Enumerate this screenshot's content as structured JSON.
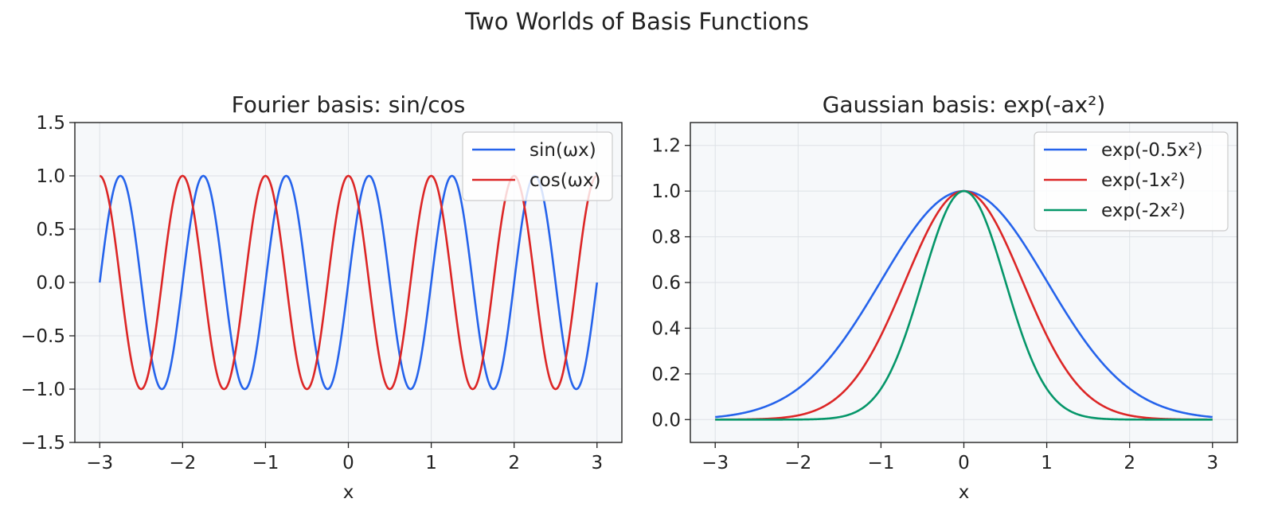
{
  "figure": {
    "title": "Two Worlds of Basis Functions"
  },
  "colors": {
    "blue": "#2563eb",
    "red": "#dc2626",
    "green": "#059669",
    "plot_bg": "#f6f8fa",
    "grid": "#dde1e6"
  },
  "chart_data": [
    {
      "type": "line",
      "title": "Fourier basis: sin/cos",
      "xlabel": "x",
      "ylabel": "",
      "xlim": [
        -3.3,
        3.3
      ],
      "ylim": [
        -1.5,
        1.5
      ],
      "xticks": [
        -3,
        -2,
        -1,
        0,
        1,
        2,
        3
      ],
      "xtick_labels": [
        "−3",
        "−2",
        "−1",
        "0",
        "1",
        "2",
        "3"
      ],
      "yticks": [
        -1.5,
        -1.0,
        -0.5,
        0.0,
        0.5,
        1.0,
        1.5
      ],
      "ytick_labels": [
        "−1.5",
        "−1.0",
        "−0.5",
        "0.0",
        "0.5",
        "1.0",
        "1.5"
      ],
      "grid": true,
      "legend_position": "upper-right",
      "x_range": [
        -3,
        3
      ],
      "series": [
        {
          "name": "sin(ωx)",
          "function": "sin",
          "omega": 6.2832,
          "color": "#2563eb"
        },
        {
          "name": "cos(ωx)",
          "function": "cos",
          "omega": 6.2832,
          "color": "#dc2626"
        }
      ]
    },
    {
      "type": "line",
      "title": "Gaussian basis: exp(-ax²)",
      "xlabel": "x",
      "ylabel": "",
      "xlim": [
        -3.3,
        3.3
      ],
      "ylim": [
        -0.1,
        1.3
      ],
      "xticks": [
        -3,
        -2,
        -1,
        0,
        1,
        2,
        3
      ],
      "xtick_labels": [
        "−3",
        "−2",
        "−1",
        "0",
        "1",
        "2",
        "3"
      ],
      "yticks": [
        0.0,
        0.2,
        0.4,
        0.6,
        0.8,
        1.0,
        1.2
      ],
      "ytick_labels": [
        "0.0",
        "0.2",
        "0.4",
        "0.6",
        "0.8",
        "1.0",
        "1.2"
      ],
      "grid": true,
      "legend_position": "upper-right",
      "x_range": [
        -3,
        3
      ],
      "series": [
        {
          "name": "exp(-0.5x²)",
          "function": "gaussian",
          "a": 0.5,
          "color": "#2563eb"
        },
        {
          "name": "exp(-1x²)",
          "function": "gaussian",
          "a": 1,
          "color": "#dc2626"
        },
        {
          "name": "exp(-2x²)",
          "function": "gaussian",
          "a": 2,
          "color": "#059669"
        }
      ]
    }
  ]
}
